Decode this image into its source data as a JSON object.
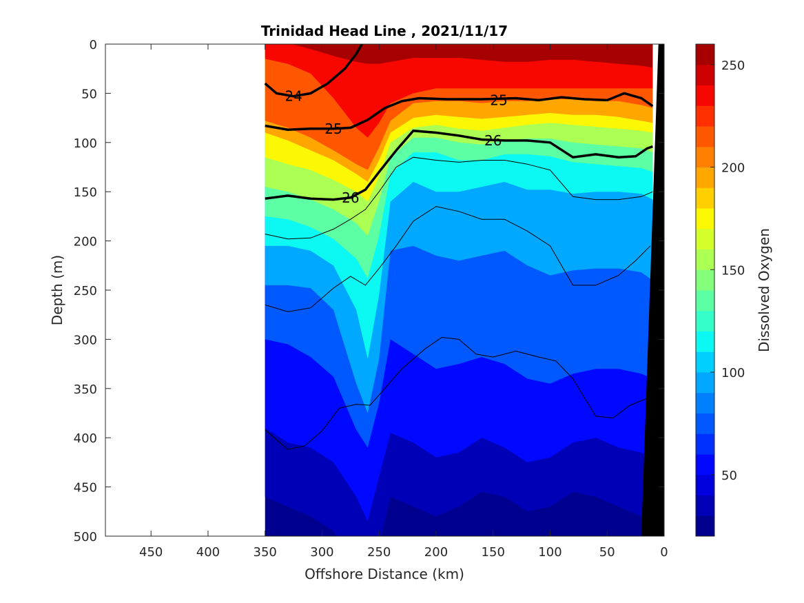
{
  "chart_data": {
    "type": "heatmap",
    "title": "Trinidad Head Line , 2021/11/17",
    "xlabel": "Offshore Distance (km)",
    "ylabel": "Depth (m)",
    "colorbar_label": "Dissolved Oxygen",
    "x_reversed": true,
    "xlim": [
      490,
      0
    ],
    "ylim": [
      0,
      500
    ],
    "y_reversed": true,
    "x_ticks": [
      "450",
      "400",
      "350",
      "300",
      "250",
      "200",
      "150",
      "100",
      "50",
      "0"
    ],
    "x_tick_values": [
      450,
      400,
      350,
      300,
      250,
      200,
      150,
      100,
      50,
      0
    ],
    "y_ticks": [
      "0",
      "50",
      "100",
      "150",
      "200",
      "250",
      "300",
      "350",
      "400",
      "450",
      "500"
    ],
    "y_tick_values": [
      0,
      50,
      100,
      150,
      200,
      250,
      300,
      350,
      400,
      450,
      500
    ],
    "colorbar_ticks": [
      "50",
      "100",
      "150",
      "200",
      "250"
    ],
    "colorbar_tick_values": [
      50,
      100,
      150,
      200,
      250
    ],
    "colorbar_range": [
      20,
      260
    ],
    "colorbar_levels": [
      20,
      30,
      40,
      50,
      60,
      70,
      80,
      90,
      100,
      110,
      120,
      130,
      140,
      150,
      160,
      170,
      180,
      190,
      200,
      210,
      220,
      230,
      240,
      250,
      260
    ],
    "colormap": [
      "#00008f",
      "#0000b7",
      "#0000df",
      "#0008ff",
      "#0030ff",
      "#0058ff",
      "#0080ff",
      "#00a8ff",
      "#00d0ff",
      "#0cf8f3",
      "#34ffcb",
      "#5cffa3",
      "#84ff7b",
      "#acff53",
      "#d4ff2b",
      "#fcf703",
      "#ffcf00",
      "#ffa700",
      "#ff7f00",
      "#ff5700",
      "#ff2f00",
      "#f70700",
      "#cf0000",
      "#a70000"
    ],
    "data_extent_x": [
      10,
      350
    ],
    "depth_profile_x": [
      350,
      330,
      310,
      290,
      270,
      260,
      250,
      240,
      220,
      200,
      180,
      160,
      140,
      120,
      100,
      80,
      60,
      40,
      20,
      10
    ],
    "oxygen_isolines_depth": {
      "o250": [
        -1,
        -1,
        5,
        12,
        18,
        20,
        20,
        18,
        14,
        14,
        14,
        16,
        18,
        18,
        16,
        16,
        18,
        20,
        22,
        24
      ],
      "o230": [
        15,
        20,
        30,
        55,
        85,
        95,
        80,
        60,
        50,
        45,
        45,
        45,
        45,
        45,
        45,
        45,
        45,
        45,
        45,
        45
      ],
      "o210": [
        78,
        85,
        95,
        108,
        122,
        128,
        105,
        78,
        60,
        58,
        58,
        60,
        58,
        58,
        56,
        56,
        58,
        58,
        62,
        65
      ],
      "o190": [
        90,
        98,
        108,
        118,
        132,
        140,
        118,
        90,
        75,
        72,
        74,
        76,
        74,
        72,
        70,
        72,
        72,
        74,
        78,
        80
      ],
      "o170": [
        115,
        122,
        128,
        138,
        150,
        160,
        135,
        100,
        85,
        82,
        86,
        88,
        85,
        82,
        80,
        82,
        84,
        86,
        88,
        90
      ],
      "o150": [
        145,
        150,
        158,
        168,
        182,
        195,
        160,
        115,
        95,
        95,
        100,
        102,
        98,
        96,
        96,
        100,
        102,
        104,
        106,
        110
      ],
      "o130": [
        175,
        178,
        186,
        198,
        218,
        238,
        195,
        132,
        110,
        110,
        118,
        118,
        112,
        112,
        114,
        120,
        122,
        124,
        126,
        130
      ],
      "o110": [
        205,
        205,
        210,
        225,
        270,
        320,
        255,
        160,
        140,
        150,
        150,
        145,
        140,
        148,
        148,
        152,
        150,
        150,
        152,
        158
      ],
      "o90": [
        245,
        245,
        248,
        270,
        345,
        375,
        320,
        210,
        205,
        215,
        220,
        215,
        210,
        225,
        235,
        230,
        228,
        228,
        232,
        240
      ],
      "o70": [
        300,
        305,
        318,
        338,
        392,
        410,
        365,
        300,
        315,
        330,
        325,
        318,
        325,
        340,
        345,
        335,
        330,
        330,
        335,
        340
      ],
      "o50": [
        390,
        405,
        410,
        425,
        460,
        485,
        440,
        395,
        405,
        420,
        415,
        400,
        410,
        425,
        420,
        405,
        400,
        410,
        415,
        420
      ],
      "o40": [
        460,
        470,
        480,
        495,
        530,
        540,
        510,
        460,
        470,
        480,
        470,
        455,
        460,
        475,
        470,
        455,
        460,
        470,
        480,
        490
      ]
    },
    "density_contours": [
      {
        "label": "24",
        "x": [
          350,
          340,
          325,
          310,
          295,
          280,
          270,
          265
        ],
        "y": [
          40,
          50,
          53,
          50,
          40,
          25,
          10,
          0
        ]
      },
      {
        "label": "25",
        "x": [
          350,
          330,
          310,
          290,
          275,
          260,
          245,
          230,
          215,
          190,
          160,
          130,
          110,
          90,
          70,
          50,
          35,
          20,
          10
        ],
        "y": [
          83,
          87,
          86,
          86,
          85,
          77,
          65,
          58,
          55,
          56,
          56,
          55,
          57,
          54,
          56,
          57,
          50,
          55,
          63
        ]
      },
      {
        "label": "26",
        "x": [
          350,
          330,
          310,
          290,
          275,
          262,
          250,
          235,
          220,
          200,
          180,
          160,
          140,
          120,
          100,
          80,
          60,
          40,
          25,
          15,
          10
        ],
        "y": [
          157,
          154,
          157,
          158,
          156,
          148,
          130,
          108,
          88,
          90,
          93,
          97,
          98,
          98,
          100,
          115,
          112,
          115,
          114,
          106,
          104
        ]
      }
    ],
    "thin_contours": [
      {
        "x": [
          350,
          330,
          310,
          290,
          275,
          262,
          250,
          235,
          220,
          200,
          180,
          160,
          140,
          120,
          100,
          80,
          60,
          40,
          20,
          10
        ],
        "y": [
          193,
          198,
          197,
          188,
          178,
          168,
          150,
          125,
          115,
          118,
          120,
          118,
          118,
          122,
          128,
          155,
          158,
          158,
          155,
          150
        ]
      },
      {
        "x": [
          350,
          330,
          310,
          290,
          275,
          262,
          250,
          235,
          220,
          200,
          180,
          160,
          140,
          120,
          100,
          80,
          60,
          40,
          25,
          12
        ],
        "y": [
          265,
          272,
          268,
          248,
          236,
          245,
          228,
          205,
          180,
          165,
          170,
          178,
          178,
          190,
          205,
          245,
          245,
          235,
          220,
          205
        ]
      },
      {
        "x": [
          350,
          330,
          315,
          300,
          285,
          270,
          258,
          245,
          230,
          210,
          195,
          180,
          165,
          150,
          130,
          110,
          95,
          80,
          60,
          45,
          30,
          15
        ],
        "y": [
          392,
          412,
          408,
          393,
          370,
          366,
          367,
          350,
          330,
          310,
          298,
          300,
          315,
          318,
          312,
          318,
          322,
          340,
          378,
          380,
          367,
          360
        ]
      }
    ],
    "bathymetry": {
      "label": "seafloor",
      "points": [
        [
          20,
          500
        ],
        [
          0,
          500
        ],
        [
          0,
          0
        ],
        [
          5,
          0
        ]
      ]
    }
  }
}
